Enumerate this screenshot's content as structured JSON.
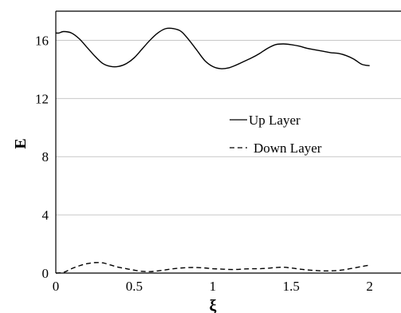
{
  "chart_data": {
    "type": "line",
    "title": "",
    "xlabel": "ξ",
    "ylabel": "E",
    "xlim": [
      0,
      2.2
    ],
    "ylim": [
      0,
      18
    ],
    "x_ticks": [
      0,
      0.5,
      1,
      1.5,
      2
    ],
    "x_tick_labels": [
      "0",
      "0.5",
      "1",
      "1.5",
      "2"
    ],
    "y_ticks": [
      0,
      4,
      8,
      12,
      16
    ],
    "y_tick_labels": [
      "0",
      "4",
      "8",
      "12",
      "16"
    ],
    "grid": "horizontal",
    "legend": "center-right",
    "series": [
      {
        "name": "Up Layer",
        "style": "solid",
        "color": "#000000",
        "x": [
          0,
          0.02,
          0.05,
          0.1,
          0.15,
          0.2,
          0.25,
          0.3,
          0.35,
          0.4,
          0.45,
          0.5,
          0.55,
          0.6,
          0.65,
          0.7,
          0.75,
          0.8,
          0.85,
          0.9,
          0.95,
          1.0,
          1.05,
          1.1,
          1.15,
          1.2,
          1.25,
          1.3,
          1.35,
          1.4,
          1.45,
          1.5,
          1.55,
          1.6,
          1.65,
          1.7,
          1.75,
          1.8,
          1.85,
          1.9,
          1.95,
          2.0
        ],
        "y": [
          16.5,
          16.5,
          16.6,
          16.5,
          16.1,
          15.5,
          14.9,
          14.4,
          14.2,
          14.2,
          14.4,
          14.8,
          15.4,
          16.0,
          16.5,
          16.8,
          16.8,
          16.6,
          16.0,
          15.3,
          14.6,
          14.2,
          14.05,
          14.1,
          14.3,
          14.55,
          14.8,
          15.1,
          15.45,
          15.7,
          15.75,
          15.7,
          15.6,
          15.45,
          15.35,
          15.25,
          15.15,
          15.1,
          14.95,
          14.7,
          14.35,
          14.25
        ]
      },
      {
        "name": "Down Layer",
        "style": "dashed",
        "color": "#000000",
        "x": [
          0,
          0.05,
          0.1,
          0.15,
          0.2,
          0.25,
          0.3,
          0.35,
          0.4,
          0.45,
          0.5,
          0.55,
          0.6,
          0.65,
          0.7,
          0.75,
          0.8,
          0.85,
          0.9,
          0.95,
          1.0,
          1.05,
          1.1,
          1.15,
          1.2,
          1.25,
          1.3,
          1.35,
          1.4,
          1.45,
          1.5,
          1.55,
          1.6,
          1.65,
          1.7,
          1.75,
          1.8,
          1.85,
          1.9,
          1.95,
          2.0
        ],
        "y": [
          0.0,
          0.05,
          0.3,
          0.5,
          0.65,
          0.72,
          0.7,
          0.55,
          0.4,
          0.3,
          0.2,
          0.12,
          0.1,
          0.15,
          0.22,
          0.3,
          0.35,
          0.38,
          0.38,
          0.35,
          0.3,
          0.28,
          0.25,
          0.25,
          0.28,
          0.3,
          0.3,
          0.33,
          0.38,
          0.4,
          0.35,
          0.28,
          0.22,
          0.18,
          0.15,
          0.15,
          0.18,
          0.25,
          0.35,
          0.45,
          0.55
        ]
      }
    ]
  }
}
